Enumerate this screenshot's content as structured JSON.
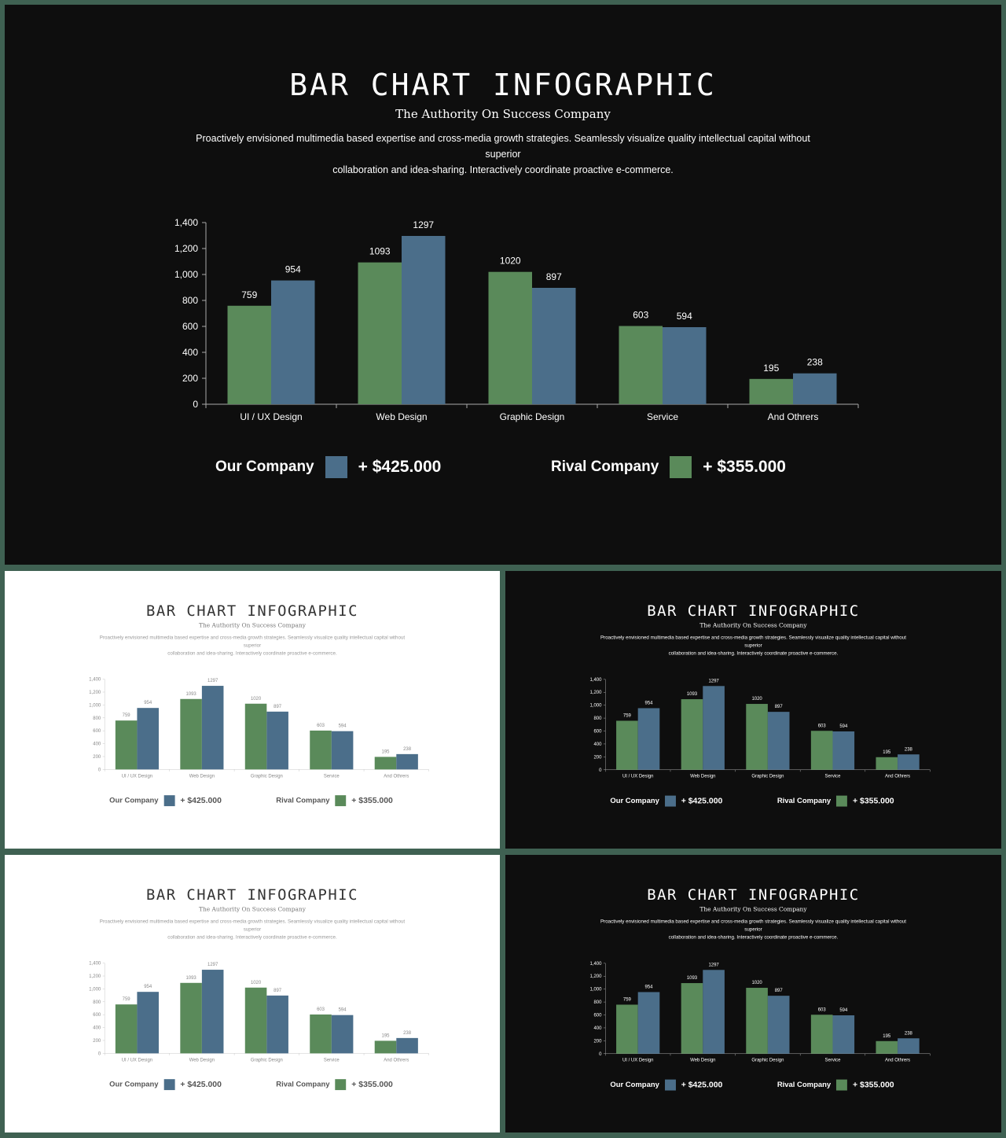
{
  "slide": {
    "title": "BAR CHART INFOGRAPHIC",
    "subtitle": "The Authority On Success Company",
    "desc_line1": "Proactively envisioned multimedia based expertise and cross-media growth strategies. Seamlessly visualize quality intellectual capital without superior",
    "desc_line2": "collaboration and idea-sharing.  Interactively coordinate proactive e-commerce."
  },
  "legend": {
    "our_label": "Our Company",
    "our_amount": "+ $425.000",
    "rival_label": "Rival Company",
    "rival_amount": "+ $355.000"
  },
  "colors": {
    "rival": "#5a8a5a",
    "our": "#4b6e8a",
    "frame": "#3f6152",
    "dark_bg": "#0e0e0e",
    "light_bg": "#ffffff"
  },
  "chart_data": {
    "type": "bar",
    "categories": [
      "UI / UX Design",
      "Web Design",
      "Graphic Design",
      "Service",
      "And Othrers"
    ],
    "series": [
      {
        "name": "Rival Company",
        "values": [
          759,
          1093,
          1020,
          603,
          195
        ]
      },
      {
        "name": "Our Company",
        "values": [
          954,
          1297,
          897,
          594,
          238
        ]
      }
    ],
    "yticks": [
      "0",
      "200",
      "400",
      "600",
      "800",
      "1,000",
      "1,200",
      "1,400"
    ],
    "ylim": [
      0,
      1400
    ],
    "grid": false,
    "legend": "bottom"
  }
}
